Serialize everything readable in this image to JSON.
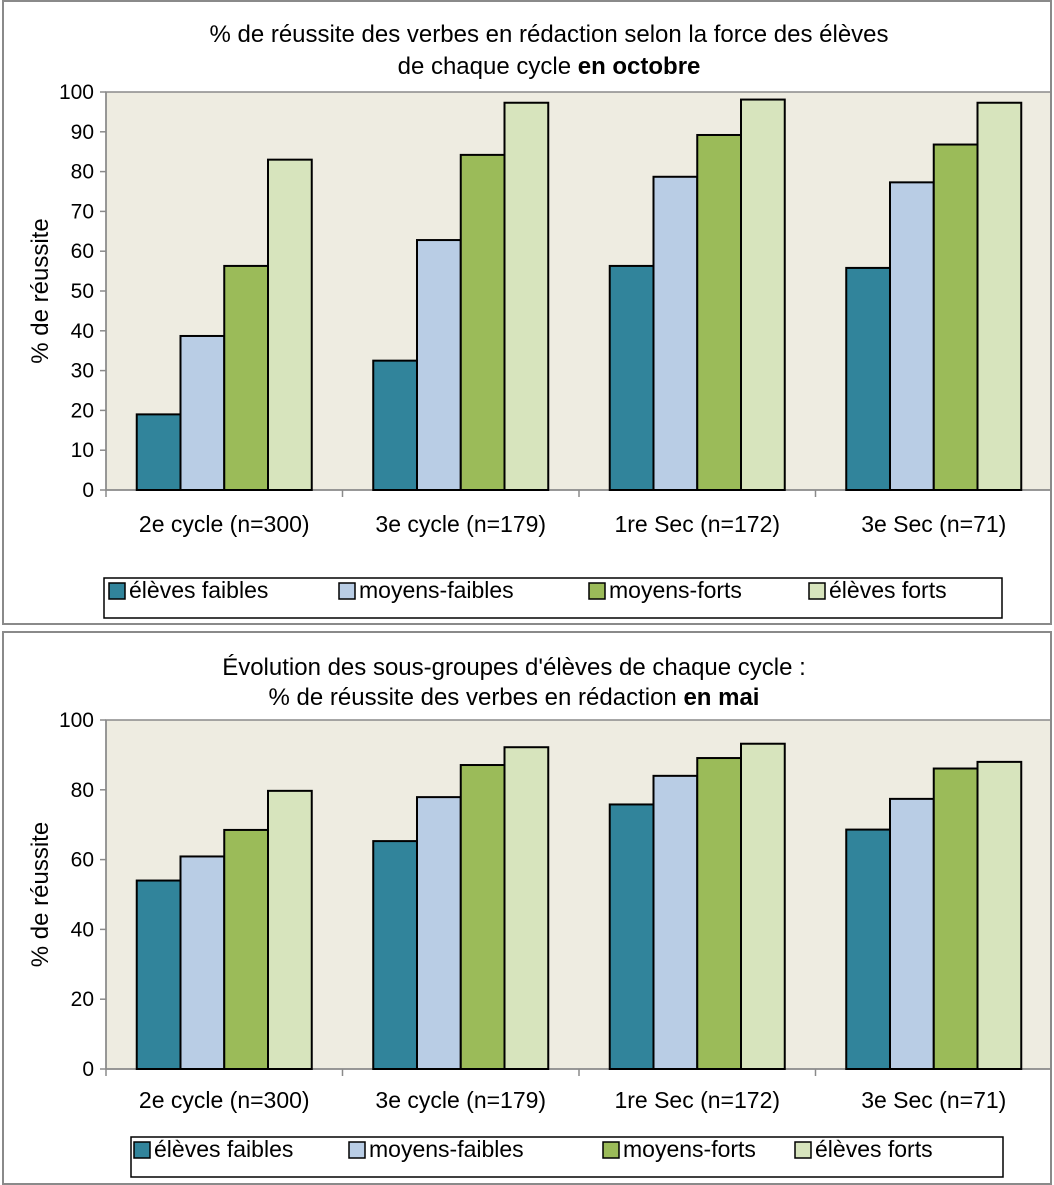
{
  "colors": {
    "plot_bg": "#EEECE1",
    "series": [
      "#31849B",
      "#B9CDE5",
      "#9BBB59",
      "#D7E4BD"
    ],
    "stroke": "#000000"
  },
  "chart_data": [
    {
      "type": "bar",
      "title_line1": "% de réussite des verbes en rédaction selon la force des élèves",
      "title_line2_regular": "de chaque cycle ",
      "title_line2_bold": "en octobre",
      "ylabel": "% de réussite",
      "xlabel": "",
      "ylim": [
        0,
        100
      ],
      "yticks": [
        0,
        10,
        20,
        30,
        40,
        50,
        60,
        70,
        80,
        90,
        100
      ],
      "grid": false,
      "legend_position": "bottom",
      "categories": [
        "2e cycle (n=300)",
        "3e cycle (n=179)",
        "1re Sec (n=172)",
        "3e Sec (n=71)"
      ],
      "series": [
        {
          "name": "élèves faibles",
          "values": [
            19,
            32.5,
            56.3,
            55.8
          ]
        },
        {
          "name": "moyens-faibles",
          "values": [
            38.7,
            62.8,
            78.7,
            77.3
          ]
        },
        {
          "name": "moyens-forts",
          "values": [
            56.3,
            84.2,
            89.2,
            86.8
          ]
        },
        {
          "name": "élèves forts",
          "values": [
            83,
            97.3,
            98.1,
            97.3
          ]
        }
      ]
    },
    {
      "type": "bar",
      "title_line1": "Évolution des sous-groupes d'élèves de chaque cycle :",
      "title_line2_regular": "% de réussite des verbes en rédaction ",
      "title_line2_bold": "en mai",
      "ylabel": "% de réussite",
      "xlabel": "",
      "ylim": [
        0,
        100
      ],
      "yticks": [
        0,
        20,
        40,
        60,
        80,
        100
      ],
      "grid": false,
      "legend_position": "bottom",
      "categories": [
        "2e cycle (n=300)",
        "3e cycle (n=179)",
        "1re Sec (n=172)",
        "3e Sec (n=71)"
      ],
      "series": [
        {
          "name": "élèves faibles",
          "values": [
            54,
            65.3,
            75.8,
            68.6
          ]
        },
        {
          "name": "moyens-faibles",
          "values": [
            60.9,
            77.9,
            84,
            77.4
          ]
        },
        {
          "name": "moyens-forts",
          "values": [
            68.5,
            87.1,
            89.1,
            86.1
          ]
        },
        {
          "name": "élèves forts",
          "values": [
            79.7,
            92.2,
            93.2,
            88
          ]
        }
      ]
    }
  ]
}
